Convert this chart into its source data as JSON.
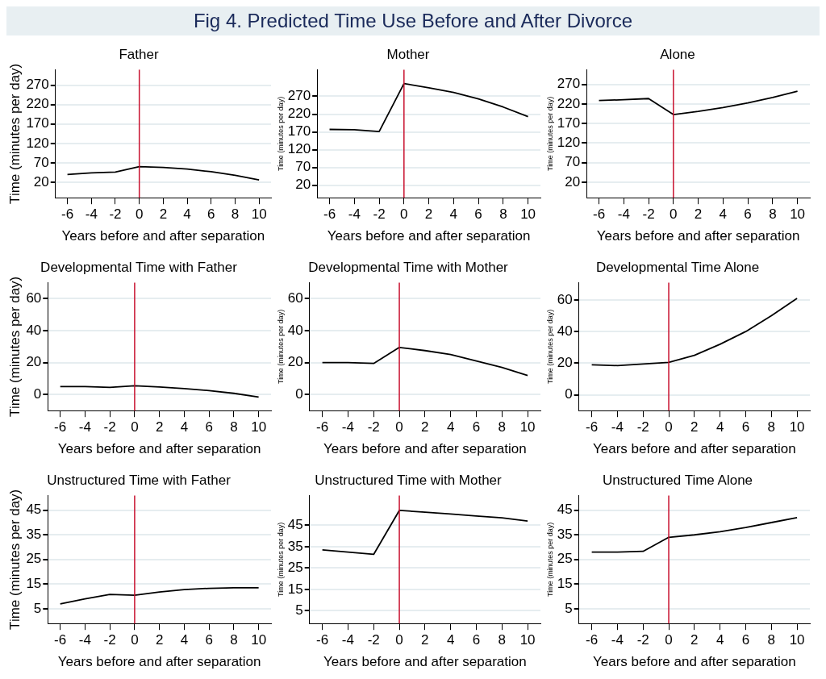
{
  "chart_data": [
    {
      "type": "line",
      "title": "Father",
      "annotations": [
        "Fig 4. Predicted Time Use Before and After Divorce"
      ],
      "xlabel": "Years before and after separation",
      "ylabel": "Time (minutes per day)",
      "x": [
        -6,
        -4,
        -2,
        0,
        2,
        4,
        6,
        8,
        10
      ],
      "xlim": [
        -7,
        11
      ],
      "xticks": [
        -6,
        -4,
        -2,
        0,
        2,
        4,
        6,
        8,
        10
      ],
      "ylim": [
        -20,
        310
      ],
      "yticks": [
        20,
        70,
        120,
        170,
        220,
        270
      ],
      "grid": "y",
      "ref_lines": [
        {
          "axis": "x",
          "value": 0,
          "color": "#c8102e"
        }
      ],
      "series": [
        {
          "color": "#000000",
          "values": [
            40,
            44,
            46,
            60,
            58,
            54,
            47,
            38,
            26
          ]
        }
      ]
    },
    {
      "type": "line",
      "title": "Mother",
      "xlabel": "Years before and after separation",
      "ylabel": "Time (minutes per day)",
      "x": [
        -6,
        -4,
        -2,
        0,
        2,
        4,
        6,
        8,
        10
      ],
      "xlim": [
        -7,
        11
      ],
      "xticks": [
        -6,
        -4,
        -2,
        0,
        2,
        4,
        6,
        8,
        10
      ],
      "ylim": [
        -15,
        345
      ],
      "yticks": [
        20,
        70,
        120,
        170,
        220,
        270
      ],
      "grid": "y",
      "ref_lines": [
        {
          "axis": "x",
          "value": 0,
          "color": "#c8102e"
        }
      ],
      "series": [
        {
          "color": "#000000",
          "values": [
            177,
            176,
            171,
            306,
            294,
            281,
            263,
            240,
            213
          ]
        }
      ]
    },
    {
      "type": "line",
      "title": "Alone",
      "xlabel": "Years before and after separation",
      "ylabel": "Time (minutes per day)",
      "x": [
        -6,
        -4,
        -2,
        0,
        2,
        4,
        6,
        8,
        10
      ],
      "xlim": [
        -7,
        11
      ],
      "xticks": [
        -6,
        -4,
        -2,
        0,
        2,
        4,
        6,
        8,
        10
      ],
      "ylim": [
        -20,
        308
      ],
      "yticks": [
        20,
        70,
        120,
        170,
        220,
        270
      ],
      "grid": "y",
      "ref_lines": [
        {
          "axis": "x",
          "value": 0,
          "color": "#c8102e"
        }
      ],
      "series": [
        {
          "color": "#000000",
          "values": [
            229,
            231,
            234,
            193,
            201,
            211,
            223,
            237,
            253
          ]
        }
      ]
    },
    {
      "type": "line",
      "title": "Developmental Time with Father",
      "xlabel": "Years before and after separation",
      "ylabel": "Time (minutes per day)",
      "x": [
        -6,
        -4,
        -2,
        0,
        2,
        4,
        6,
        8,
        10
      ],
      "xlim": [
        -7,
        11
      ],
      "xticks": [
        -6,
        -4,
        -2,
        0,
        2,
        4,
        6,
        8,
        10
      ],
      "ylim": [
        -10,
        70
      ],
      "yticks": [
        0,
        20,
        40,
        60
      ],
      "grid": "y",
      "ref_lines": [
        {
          "axis": "x",
          "value": 0,
          "color": "#c8102e"
        }
      ],
      "series": [
        {
          "color": "#000000",
          "values": [
            5,
            5,
            4.5,
            5.5,
            4.8,
            3.8,
            2.5,
            0.8,
            -1.5
          ]
        }
      ]
    },
    {
      "type": "line",
      "title": "Developmental Time with Mother",
      "xlabel": "Years before and after separation",
      "ylabel": "Time (minutes per day)",
      "x": [
        -6,
        -4,
        -2,
        0,
        2,
        4,
        6,
        8,
        10
      ],
      "xlim": [
        -7,
        11
      ],
      "xticks": [
        -6,
        -4,
        -2,
        0,
        2,
        4,
        6,
        8,
        10
      ],
      "ylim": [
        -10,
        70
      ],
      "yticks": [
        0,
        20,
        40,
        60
      ],
      "grid": "y",
      "ref_lines": [
        {
          "axis": "x",
          "value": 0,
          "color": "#c8102e"
        }
      ],
      "series": [
        {
          "color": "#000000",
          "values": [
            20,
            20,
            19.5,
            29.5,
            27.5,
            25,
            21,
            17,
            12
          ]
        }
      ]
    },
    {
      "type": "line",
      "title": "Developmental Time Alone",
      "xlabel": "Years before and after separation",
      "ylabel": "Time (minutes per day)",
      "x": [
        -6,
        -4,
        -2,
        0,
        2,
        4,
        6,
        8,
        10
      ],
      "xlim": [
        -7,
        11
      ],
      "xticks": [
        -6,
        -4,
        -2,
        0,
        2,
        4,
        6,
        8,
        10
      ],
      "ylim": [
        -10,
        71
      ],
      "yticks": [
        0,
        20,
        40,
        60
      ],
      "grid": "y",
      "ref_lines": [
        {
          "axis": "x",
          "value": 0,
          "color": "#c8102e"
        }
      ],
      "series": [
        {
          "color": "#000000",
          "values": [
            19,
            18.5,
            19.5,
            20.5,
            25,
            32,
            40,
            50,
            61
          ]
        }
      ]
    },
    {
      "type": "line",
      "title": "Unstructured Time with Father",
      "xlabel": "Years before and after separation",
      "ylabel": "Time (minutes per day)",
      "x": [
        -6,
        -4,
        -2,
        0,
        2,
        4,
        6,
        8,
        10
      ],
      "xlim": [
        -7,
        11
      ],
      "xticks": [
        -6,
        -4,
        -2,
        0,
        2,
        4,
        6,
        8,
        10
      ],
      "ylim": [
        -1,
        51
      ],
      "yticks": [
        5,
        15,
        25,
        35,
        45
      ],
      "grid": "y",
      "ref_lines": [
        {
          "axis": "x",
          "value": 0,
          "color": "#c8102e"
        }
      ],
      "series": [
        {
          "color": "#000000",
          "values": [
            7,
            9,
            10.8,
            10.5,
            11.8,
            12.8,
            13.3,
            13.5,
            13.5
          ]
        }
      ]
    },
    {
      "type": "line",
      "title": "Unstructured Time with Mother",
      "xlabel": "Years before and after separation",
      "ylabel": "Time (minutes per day)",
      "x": [
        -6,
        -4,
        -2,
        0,
        2,
        4,
        6,
        8,
        10
      ],
      "xlim": [
        -7,
        11
      ],
      "xticks": [
        -6,
        -4,
        -2,
        0,
        2,
        4,
        6,
        8,
        10
      ],
      "ylim": [
        -1,
        59
      ],
      "yticks": [
        5,
        15,
        25,
        35,
        45
      ],
      "grid": "y",
      "ref_lines": [
        {
          "axis": "x",
          "value": 0,
          "color": "#c8102e"
        }
      ],
      "series": [
        {
          "color": "#000000",
          "values": [
            33.5,
            32.5,
            31.4,
            52,
            51.2,
            50.3,
            49.4,
            48.5,
            47
          ]
        }
      ]
    },
    {
      "type": "line",
      "title": "Unstructured Time Alone",
      "xlabel": "Years before and after separation",
      "ylabel": "Time (minutes per day)",
      "x": [
        -6,
        -4,
        -2,
        0,
        2,
        4,
        6,
        8,
        10
      ],
      "xlim": [
        -7,
        11
      ],
      "xticks": [
        -6,
        -4,
        -2,
        0,
        2,
        4,
        6,
        8,
        10
      ],
      "ylim": [
        -1,
        51
      ],
      "yticks": [
        5,
        15,
        25,
        35,
        45
      ],
      "grid": "y",
      "ref_lines": [
        {
          "axis": "x",
          "value": 0,
          "color": "#c8102e"
        }
      ],
      "series": [
        {
          "color": "#000000",
          "values": [
            28,
            28,
            28.3,
            34,
            35,
            36.3,
            38,
            40,
            42
          ]
        }
      ]
    }
  ]
}
